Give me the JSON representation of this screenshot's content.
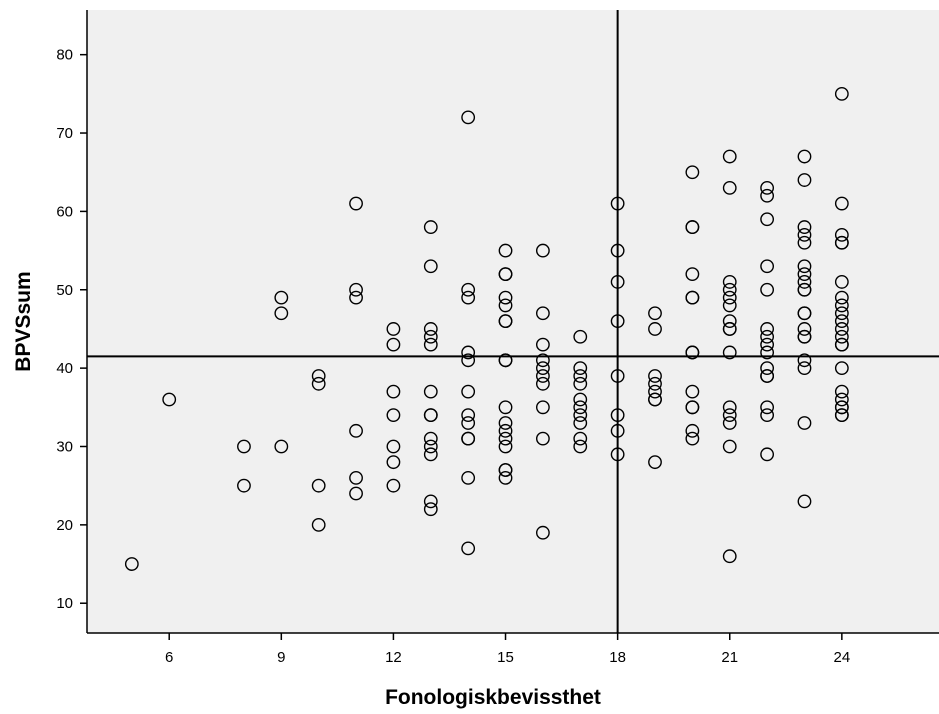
{
  "chart_data": {
    "type": "scatter",
    "title": "",
    "xlabel": "Fonologiskbevissthet",
    "ylabel": "BPVSsum",
    "xlim": [
      3.8,
      26.6
    ],
    "ylim": [
      6.2,
      85.7
    ],
    "xticks": [
      6,
      9,
      12,
      15,
      18,
      21,
      24
    ],
    "yticks": [
      10,
      20,
      30,
      40,
      50,
      60,
      70,
      80
    ],
    "grid": false,
    "legend": "none",
    "reference_lines": {
      "x": 18,
      "y": 41.5
    },
    "colors": {
      "plot_bg": "#f0f0f0",
      "marker_edge": "#000000",
      "axis": "#000000"
    },
    "points": [
      [
        5,
        15
      ],
      [
        6,
        36
      ],
      [
        8,
        30
      ],
      [
        8,
        25
      ],
      [
        9,
        49
      ],
      [
        9,
        47
      ],
      [
        9,
        30
      ],
      [
        10,
        39
      ],
      [
        10,
        38
      ],
      [
        10,
        25
      ],
      [
        10,
        20
      ],
      [
        11,
        61
      ],
      [
        11,
        50
      ],
      [
        11,
        49
      ],
      [
        11,
        32
      ],
      [
        11,
        26
      ],
      [
        11,
        24
      ],
      [
        12,
        45
      ],
      [
        12,
        43
      ],
      [
        12,
        37
      ],
      [
        12,
        34
      ],
      [
        12,
        30
      ],
      [
        12,
        28
      ],
      [
        12,
        25
      ],
      [
        13,
        58
      ],
      [
        13,
        53
      ],
      [
        13,
        45
      ],
      [
        13,
        44
      ],
      [
        13,
        43
      ],
      [
        13,
        37
      ],
      [
        13,
        34
      ],
      [
        13,
        34
      ],
      [
        13,
        31
      ],
      [
        13,
        30
      ],
      [
        13,
        29
      ],
      [
        13,
        23
      ],
      [
        13,
        22
      ],
      [
        14,
        72
      ],
      [
        14,
        50
      ],
      [
        14,
        49
      ],
      [
        14,
        42
      ],
      [
        14,
        41
      ],
      [
        14,
        37
      ],
      [
        14,
        34
      ],
      [
        14,
        33
      ],
      [
        14,
        31
      ],
      [
        14,
        31
      ],
      [
        14,
        26
      ],
      [
        14,
        17
      ],
      [
        15,
        55
      ],
      [
        15,
        52
      ],
      [
        15,
        52
      ],
      [
        15,
        49
      ],
      [
        15,
        48
      ],
      [
        15,
        46
      ],
      [
        15,
        46
      ],
      [
        15,
        41
      ],
      [
        15,
        41
      ],
      [
        15,
        35
      ],
      [
        15,
        33
      ],
      [
        15,
        32
      ],
      [
        15,
        31
      ],
      [
        15,
        30
      ],
      [
        15,
        27
      ],
      [
        15,
        27
      ],
      [
        15,
        26
      ],
      [
        16,
        55
      ],
      [
        16,
        47
      ],
      [
        16,
        43
      ],
      [
        16,
        41
      ],
      [
        16,
        40
      ],
      [
        16,
        39
      ],
      [
        16,
        38
      ],
      [
        16,
        35
      ],
      [
        16,
        31
      ],
      [
        16,
        19
      ],
      [
        17,
        44
      ],
      [
        17,
        40
      ],
      [
        17,
        39
      ],
      [
        17,
        38
      ],
      [
        17,
        36
      ],
      [
        17,
        35
      ],
      [
        17,
        34
      ],
      [
        17,
        33
      ],
      [
        17,
        31
      ],
      [
        17,
        30
      ],
      [
        18,
        61
      ],
      [
        18,
        55
      ],
      [
        18,
        51
      ],
      [
        18,
        46
      ],
      [
        18,
        39
      ],
      [
        18,
        34
      ],
      [
        18,
        32
      ],
      [
        18,
        29
      ],
      [
        19,
        47
      ],
      [
        19,
        45
      ],
      [
        19,
        39
      ],
      [
        19,
        38
      ],
      [
        19,
        37
      ],
      [
        19,
        36
      ],
      [
        19,
        36
      ],
      [
        19,
        28
      ],
      [
        20,
        65
      ],
      [
        20,
        58
      ],
      [
        20,
        58
      ],
      [
        20,
        52
      ],
      [
        20,
        49
      ],
      [
        20,
        49
      ],
      [
        20,
        42
      ],
      [
        20,
        42
      ],
      [
        20,
        37
      ],
      [
        20,
        35
      ],
      [
        20,
        35
      ],
      [
        20,
        32
      ],
      [
        20,
        31
      ],
      [
        21,
        67
      ],
      [
        21,
        63
      ],
      [
        21,
        51
      ],
      [
        21,
        50
      ],
      [
        21,
        49
      ],
      [
        21,
        48
      ],
      [
        21,
        46
      ],
      [
        21,
        45
      ],
      [
        21,
        45
      ],
      [
        21,
        42
      ],
      [
        21,
        35
      ],
      [
        21,
        34
      ],
      [
        21,
        33
      ],
      [
        21,
        30
      ],
      [
        21,
        16
      ],
      [
        22,
        63
      ],
      [
        22,
        62
      ],
      [
        22,
        59
      ],
      [
        22,
        53
      ],
      [
        22,
        50
      ],
      [
        22,
        45
      ],
      [
        22,
        44
      ],
      [
        22,
        43
      ],
      [
        22,
        42
      ],
      [
        22,
        40
      ],
      [
        22,
        39
      ],
      [
        22,
        39
      ],
      [
        22,
        35
      ],
      [
        22,
        34
      ],
      [
        22,
        29
      ],
      [
        23,
        67
      ],
      [
        23,
        64
      ],
      [
        23,
        58
      ],
      [
        23,
        57
      ],
      [
        23,
        56
      ],
      [
        23,
        53
      ],
      [
        23,
        52
      ],
      [
        23,
        51
      ],
      [
        23,
        50
      ],
      [
        23,
        50
      ],
      [
        23,
        47
      ],
      [
        23,
        47
      ],
      [
        23,
        45
      ],
      [
        23,
        44
      ],
      [
        23,
        44
      ],
      [
        23,
        41
      ],
      [
        23,
        40
      ],
      [
        23,
        33
      ],
      [
        23,
        23
      ],
      [
        24,
        75
      ],
      [
        24,
        61
      ],
      [
        24,
        57
      ],
      [
        24,
        56
      ],
      [
        24,
        56
      ],
      [
        24,
        51
      ],
      [
        24,
        49
      ],
      [
        24,
        48
      ],
      [
        24,
        47
      ],
      [
        24,
        46
      ],
      [
        24,
        45
      ],
      [
        24,
        44
      ],
      [
        24,
        43
      ],
      [
        24,
        43
      ],
      [
        24,
        40
      ],
      [
        24,
        37
      ],
      [
        24,
        36
      ],
      [
        24,
        35
      ],
      [
        24,
        35
      ],
      [
        24,
        34
      ],
      [
        24,
        34
      ]
    ]
  }
}
